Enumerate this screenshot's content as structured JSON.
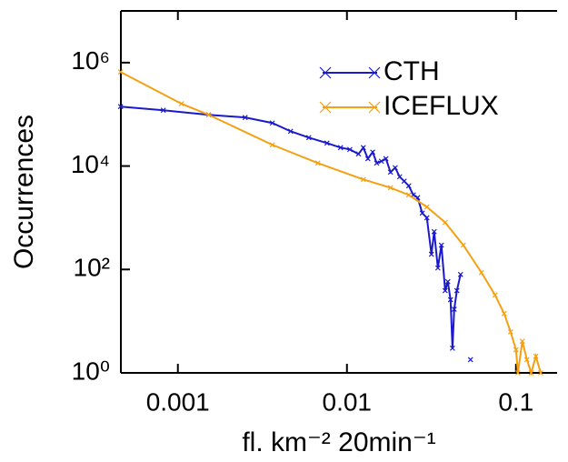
{
  "chart_data": {
    "type": "line",
    "xlabel": "fl. km⁻² 20min⁻¹",
    "ylabel": "Occurrences",
    "xscale": "log",
    "yscale": "log",
    "xlim": [
      0.00046,
      0.175
    ],
    "ylim": [
      1,
      10000000
    ],
    "xticks": [
      0.001,
      0.01,
      0.1
    ],
    "yticks": [
      {
        "value": 1,
        "label": "10⁰"
      },
      {
        "value": 100,
        "label": "10²"
      },
      {
        "value": 10000,
        "label": "10⁴"
      },
      {
        "value": 1000000,
        "label": "10⁶"
      }
    ],
    "legend": "upper right",
    "series": [
      {
        "name": "CTH",
        "color": "#1a1acc",
        "x": [
          0.000458,
          0.00082,
          0.00152,
          0.0025,
          0.00362,
          0.00464,
          0.00595,
          0.00762,
          0.00917,
          0.0104,
          0.0117,
          0.0125,
          0.0133,
          0.0142,
          0.015,
          0.016,
          0.017,
          0.0181,
          0.0193,
          0.0205,
          0.0218,
          0.0232,
          0.0247,
          0.0262,
          0.0279,
          0.0297,
          0.0316,
          0.0328,
          0.0345,
          0.0362,
          0.0381,
          0.0395,
          0.041,
          0.0421,
          0.0431,
          0.0447,
          0.047,
          null,
          0.0538
        ],
        "values": [
          141000,
          120000,
          98000,
          87000,
          68000,
          47000,
          35500,
          27800,
          22700,
          20900,
          17100,
          22700,
          13900,
          18600,
          11400,
          12400,
          13900,
          7600,
          9300,
          6200,
          5100,
          4150,
          2760,
          2450,
          1230,
          1000,
          197,
          540,
          107,
          295,
          39,
          58,
          26,
          3,
          17,
          39,
          80,
          null,
          1.8
        ]
      },
      {
        "name": "ICEFLUX",
        "color": "#f5a012",
        "x": [
          0.000458,
          0.00105,
          0.00152,
          0.00362,
          0.00673,
          0.0125,
          0.0181,
          0.0232,
          0.0297,
          0.0381,
          0.0488,
          0.0625,
          0.0752,
          0.0851,
          0.0929,
          0.1,
          0.1026,
          0.109,
          0.116,
          0.123,
          0.131,
          0.14
        ],
        "values": [
          660000,
          160000,
          98000,
          25700,
          11400,
          5500,
          3800,
          2760,
          1620,
          810,
          295,
          87,
          32,
          14,
          6.2,
          2.8,
          1,
          4.1,
          1.8,
          1,
          2.1,
          1
        ]
      }
    ]
  }
}
